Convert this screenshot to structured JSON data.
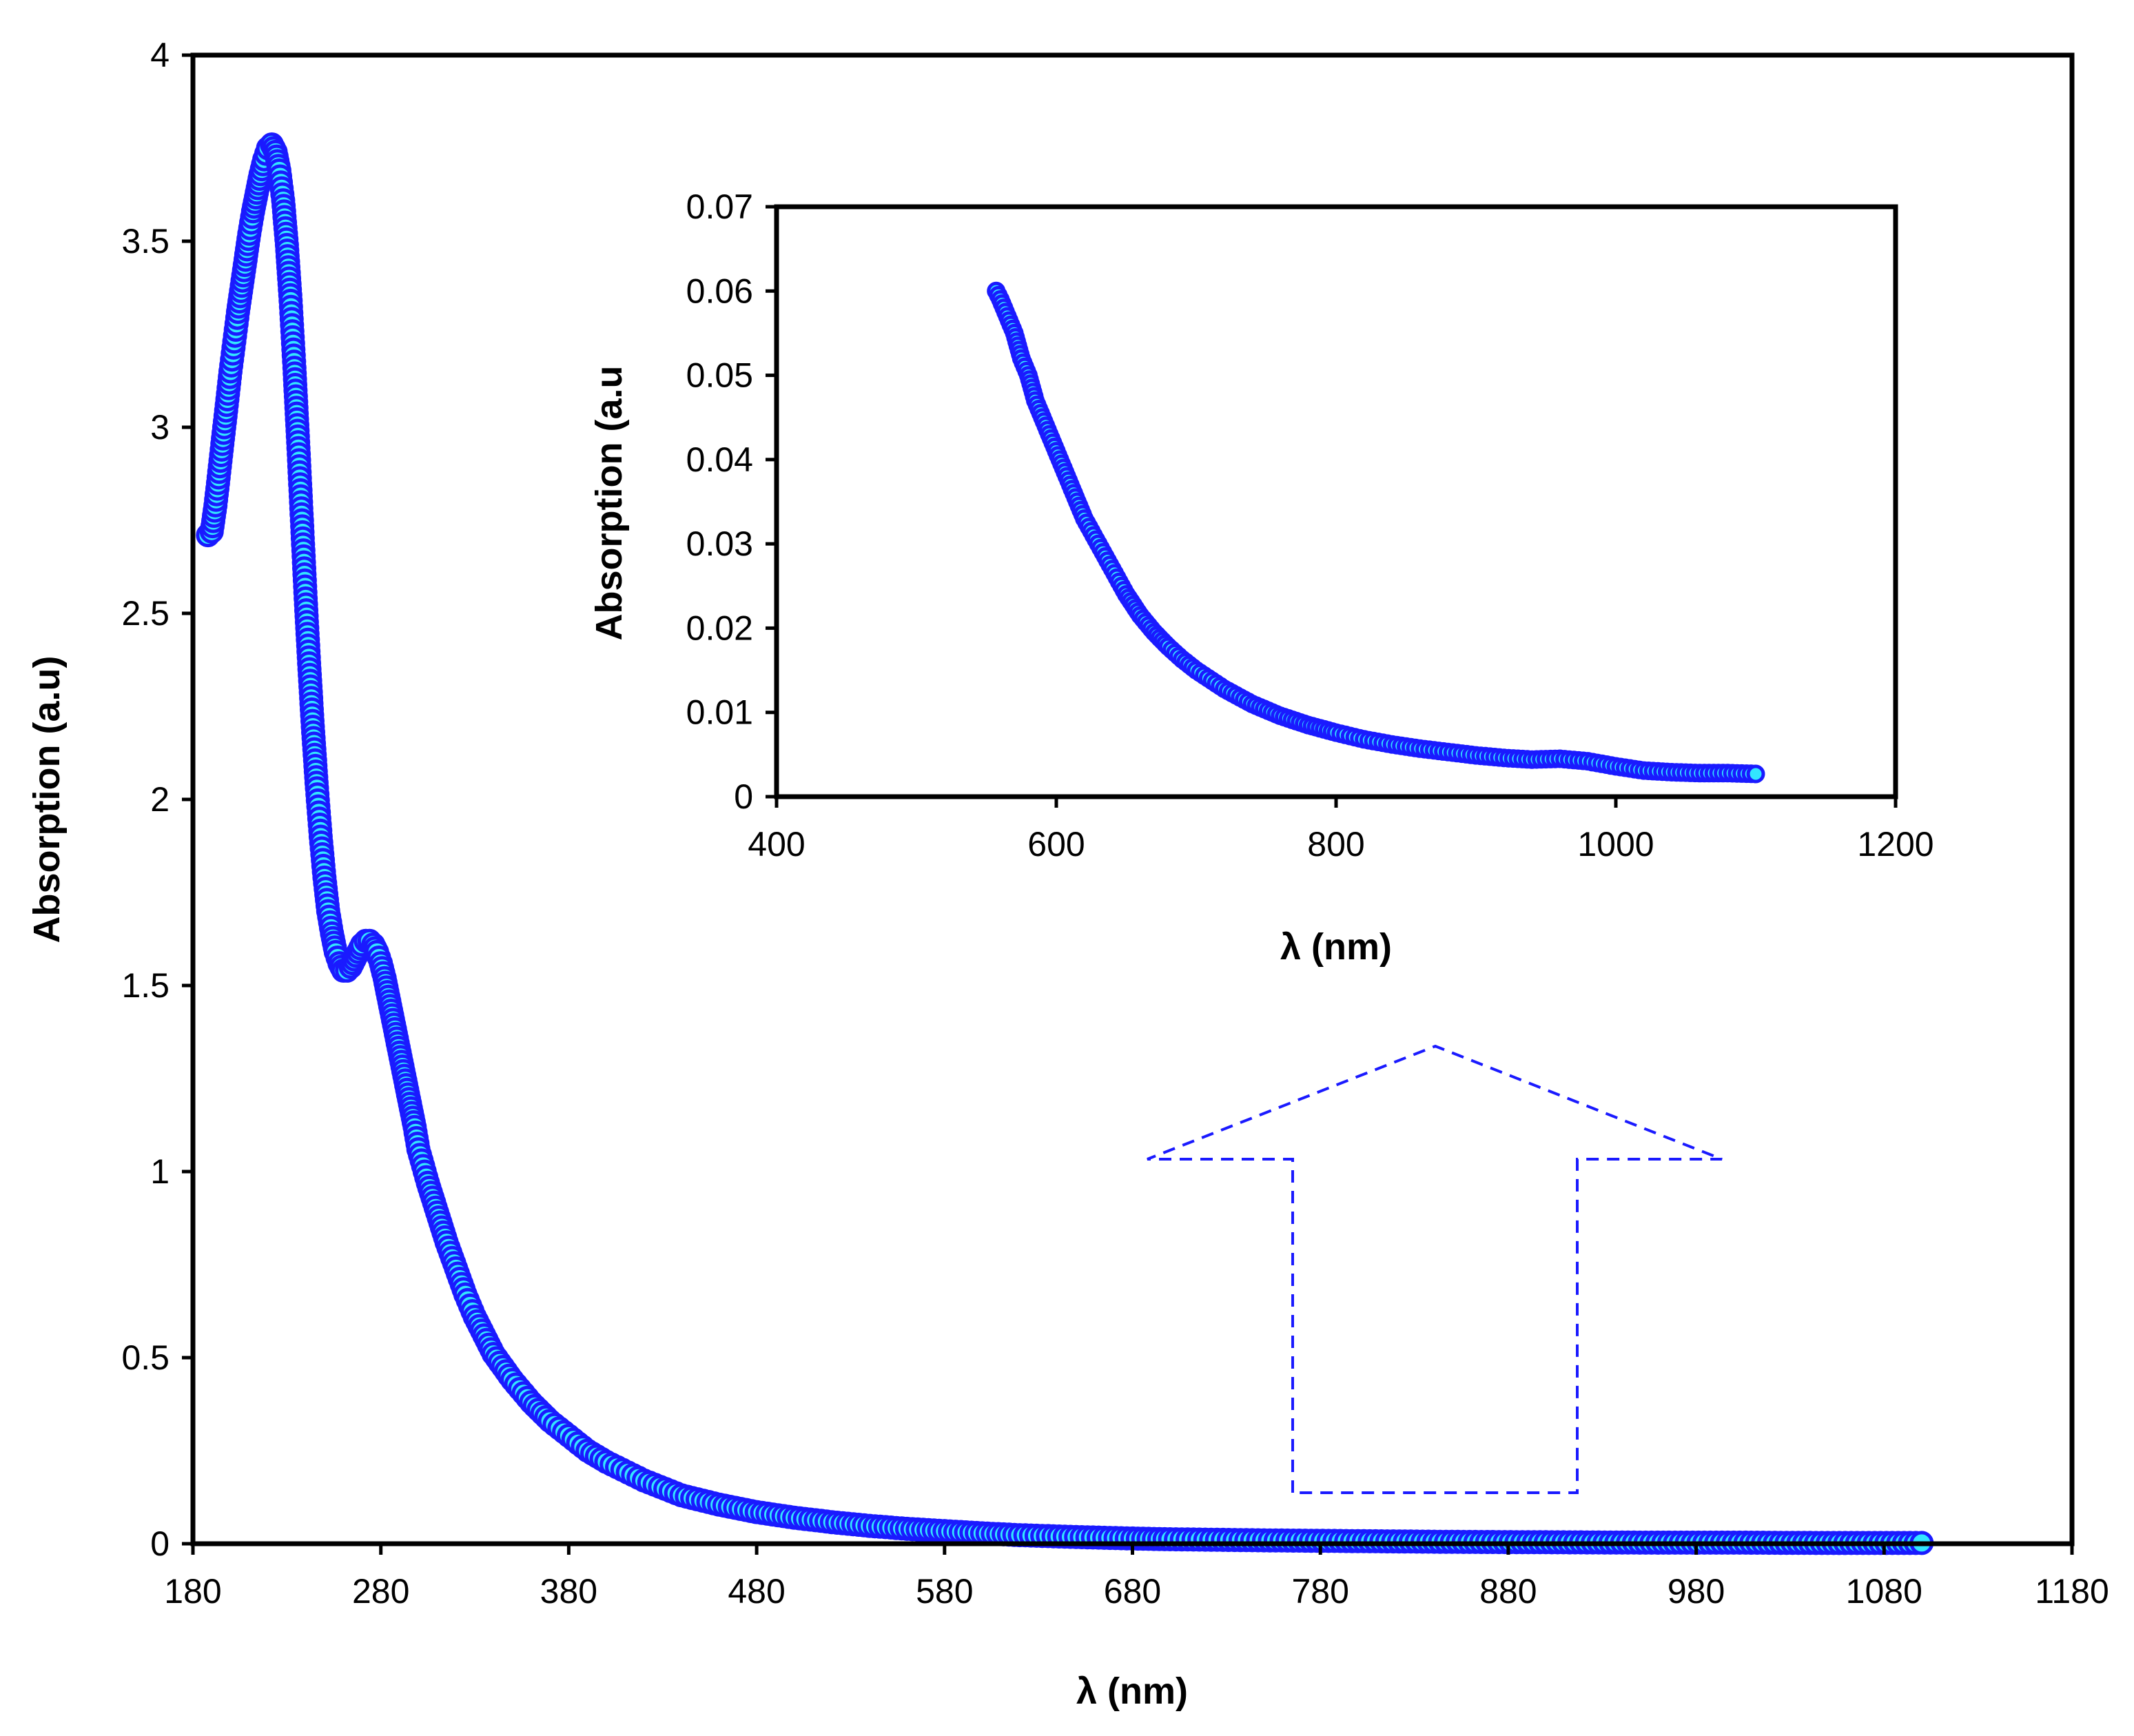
{
  "chart_data": [
    {
      "id": "main",
      "type": "scatter",
      "title": "",
      "xlabel": "λ (nm)",
      "ylabel": "Absorption (a.u)",
      "xlim": [
        180,
        1180
      ],
      "ylim": [
        0,
        4
      ],
      "x_ticks": [
        "180",
        "280",
        "380",
        "480",
        "580",
        "680",
        "780",
        "880",
        "980",
        "1080",
        "1180"
      ],
      "y_ticks": [
        "0",
        "0.5",
        "1",
        "1.5",
        "2",
        "2.5",
        "3",
        "3.5",
        "4"
      ],
      "grid": false,
      "legend": "none",
      "series": [
        {
          "name": "Absorption",
          "marker_fill": "#33e6ff",
          "marker_edge": "#1a1aff",
          "x": [
            188,
            190,
            192,
            194,
            196,
            198,
            200,
            202,
            204,
            206,
            208,
            210,
            212,
            214,
            216,
            218,
            220,
            222,
            224,
            226,
            228,
            230,
            232,
            234,
            236,
            238,
            240,
            242,
            244,
            246,
            248,
            250,
            252,
            254,
            256,
            258,
            260,
            262,
            264,
            266,
            268,
            270,
            272,
            274,
            276,
            278,
            280,
            282,
            284,
            286,
            288,
            290,
            292,
            294,
            296,
            298,
            300,
            305,
            310,
            315,
            320,
            325,
            330,
            335,
            340,
            350,
            360,
            370,
            380,
            390,
            400,
            420,
            440,
            460,
            480,
            500,
            520,
            540,
            560,
            580,
            600,
            620,
            650,
            680,
            700,
            750,
            800,
            850,
            900,
            950,
            1000,
            1050,
            1100
          ],
          "y": [
            2.71,
            2.72,
            2.79,
            2.88,
            2.97,
            3.06,
            3.15,
            3.23,
            3.31,
            3.38,
            3.45,
            3.52,
            3.58,
            3.63,
            3.68,
            3.72,
            3.75,
            3.76,
            3.74,
            3.69,
            3.61,
            3.49,
            3.34,
            3.16,
            2.96,
            2.75,
            2.54,
            2.35,
            2.18,
            2.03,
            1.9,
            1.79,
            1.7,
            1.64,
            1.59,
            1.56,
            1.54,
            1.54,
            1.55,
            1.57,
            1.59,
            1.61,
            1.62,
            1.62,
            1.61,
            1.59,
            1.56,
            1.52,
            1.47,
            1.42,
            1.37,
            1.32,
            1.27,
            1.22,
            1.17,
            1.12,
            1.06,
            0.97,
            0.89,
            0.81,
            0.74,
            0.67,
            0.61,
            0.56,
            0.51,
            0.44,
            0.38,
            0.33,
            0.29,
            0.25,
            0.22,
            0.17,
            0.13,
            0.105,
            0.085,
            0.07,
            0.058,
            0.048,
            0.04,
            0.034,
            0.028,
            0.023,
            0.018,
            0.014,
            0.012,
            0.009,
            0.007,
            0.005,
            0.004,
            0.003,
            0.003,
            0.002,
            0.002
          ]
        }
      ]
    },
    {
      "id": "inset",
      "type": "scatter",
      "title": "",
      "xlabel": "λ (nm)",
      "ylabel": "Absorption (a.u",
      "xlim": [
        400,
        1200
      ],
      "ylim": [
        0,
        0.07
      ],
      "x_ticks": [
        "400",
        "600",
        "800",
        "1000",
        "1200"
      ],
      "y_ticks": [
        "0",
        "0.01",
        "0.02",
        "0.03",
        "0.04",
        "0.05",
        "0.06",
        "0.07"
      ],
      "grid": false,
      "legend": "none",
      "series": [
        {
          "name": "Absorption (zoom)",
          "marker_fill": "#33e6ff",
          "marker_edge": "#1a1aff",
          "x": [
            557,
            560,
            565,
            570,
            575,
            580,
            585,
            590,
            595,
            600,
            610,
            620,
            630,
            640,
            650,
            660,
            670,
            680,
            690,
            700,
            720,
            740,
            760,
            780,
            800,
            820,
            840,
            860,
            880,
            900,
            920,
            940,
            960,
            980,
            1000,
            1020,
            1040,
            1060,
            1080,
            1100
          ],
          "y": [
            0.06,
            0.059,
            0.057,
            0.055,
            0.052,
            0.05,
            0.047,
            0.045,
            0.043,
            0.041,
            0.037,
            0.033,
            0.03,
            0.027,
            0.024,
            0.0215,
            0.0195,
            0.0178,
            0.0163,
            0.015,
            0.0128,
            0.011,
            0.0096,
            0.0085,
            0.0076,
            0.0068,
            0.0062,
            0.0057,
            0.0053,
            0.0049,
            0.0046,
            0.0044,
            0.0045,
            0.0042,
            0.0036,
            0.0031,
            0.0029,
            0.0028,
            0.0028,
            0.0027
          ]
        }
      ]
    }
  ],
  "callout": {
    "color": "#1a1aff",
    "meaning": "zoom-arrow"
  }
}
